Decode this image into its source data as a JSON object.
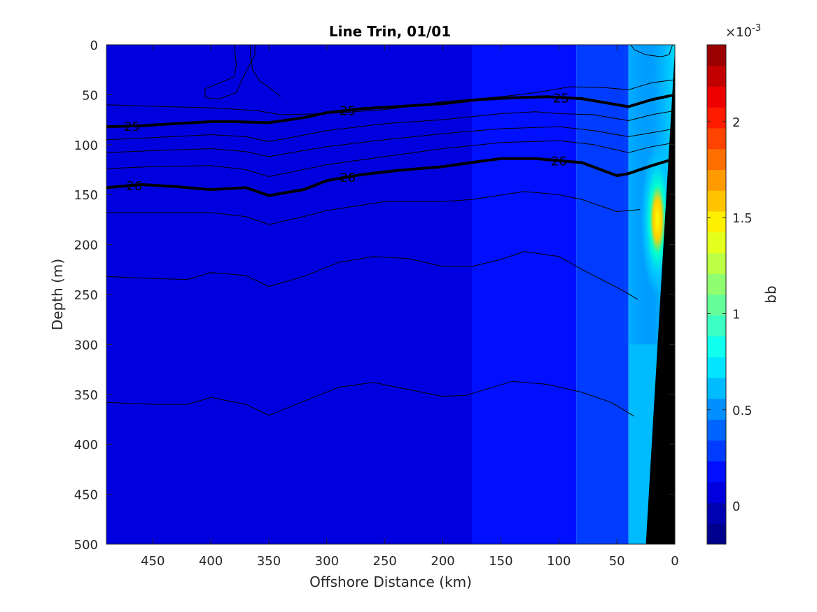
{
  "chart_data": {
    "type": "heatmap",
    "title": "Line Trin, 01/01",
    "xlabel": "Offshore Distance (km)",
    "ylabel": "Depth (m)",
    "colorbar_label": "bb",
    "colorbar_exponent_prefix": "×10",
    "colorbar_exponent": "-3",
    "xlim": [
      490,
      0
    ],
    "ylim": [
      0,
      500
    ],
    "x_ticks": [
      450,
      400,
      350,
      300,
      250,
      200,
      150,
      100,
      50,
      0
    ],
    "y_ticks": [
      0,
      50,
      100,
      150,
      200,
      250,
      300,
      350,
      400,
      450,
      500
    ],
    "colorbar_range": [
      -0.2,
      2.4
    ],
    "colorbar_ticks": [
      0,
      0.5,
      1,
      1.5,
      2
    ],
    "colorbar_colors": [
      "#00008f",
      "#0000b3",
      "#0000df",
      "#0010ff",
      "#003cff",
      "#0064ff",
      "#0090ff",
      "#00bcff",
      "#00e4ff",
      "#10ffef",
      "#3cffc3",
      "#64ff9b",
      "#90ff6f",
      "#bcff43",
      "#e4ff1b",
      "#ffef00",
      "#ffc300",
      "#ff9b00",
      "#ff6f00",
      "#ff4300",
      "#ff1b00",
      "#ef0000",
      "#c30000",
      "#9b0000"
    ],
    "background_regions": [
      {
        "x_from": 490,
        "x_to": 175,
        "value": 0.1
      },
      {
        "x_from": 175,
        "x_to": 85,
        "value": 0.2
      },
      {
        "x_from": 85,
        "x_to": 40,
        "value": 0.3
      },
      {
        "x_from": 40,
        "x_to": 0,
        "value": 0.6
      }
    ],
    "nearshore_max": {
      "x": 15,
      "depth": 175,
      "value": 1.6
    },
    "shelf_bottom": [
      [
        25,
        500
      ],
      [
        0,
        5
      ]
    ],
    "isopycnals": [
      {
        "level": "25",
        "bold": true,
        "label_x": [
          468,
          282,
          98
        ],
        "points": [
          [
            490,
            82
          ],
          [
            460,
            81
          ],
          [
            430,
            79
          ],
          [
            400,
            77
          ],
          [
            380,
            77
          ],
          [
            350,
            78
          ],
          [
            320,
            73
          ],
          [
            300,
            68
          ],
          [
            270,
            64
          ],
          [
            240,
            62
          ],
          [
            200,
            59
          ],
          [
            170,
            55
          ],
          [
            140,
            53
          ],
          [
            110,
            52
          ],
          [
            80,
            54
          ],
          [
            50,
            60
          ],
          [
            40,
            62
          ],
          [
            20,
            55
          ],
          [
            0,
            50
          ]
        ]
      },
      {
        "level": "26",
        "bold": true,
        "label_x": [
          466,
          282,
          100
        ],
        "points": [
          [
            490,
            143
          ],
          [
            460,
            140
          ],
          [
            430,
            142
          ],
          [
            400,
            145
          ],
          [
            370,
            143
          ],
          [
            350,
            151
          ],
          [
            320,
            145
          ],
          [
            300,
            136
          ],
          [
            270,
            130
          ],
          [
            240,
            126
          ],
          [
            200,
            122
          ],
          [
            170,
            117
          ],
          [
            150,
            114
          ],
          [
            120,
            114
          ],
          [
            100,
            116
          ],
          [
            80,
            118
          ],
          [
            50,
            131
          ],
          [
            40,
            129
          ],
          [
            20,
            121
          ],
          [
            0,
            114
          ]
        ]
      },
      {
        "level": "",
        "bold": false,
        "label_x": [],
        "points": [
          [
            490,
            60
          ],
          [
            440,
            62
          ],
          [
            400,
            63
          ],
          [
            360,
            66
          ],
          [
            340,
            70
          ],
          [
            300,
            69
          ],
          [
            250,
            65
          ],
          [
            200,
            57
          ],
          [
            150,
            52
          ],
          [
            120,
            48
          ],
          [
            90,
            42
          ],
          [
            60,
            43
          ],
          [
            40,
            45
          ],
          [
            20,
            38
          ],
          [
            0,
            35
          ]
        ]
      },
      {
        "level": "",
        "bold": false,
        "label_x": [],
        "points": [
          [
            490,
            95
          ],
          [
            450,
            93
          ],
          [
            400,
            90
          ],
          [
            370,
            92
          ],
          [
            350,
            97
          ],
          [
            300,
            86
          ],
          [
            250,
            79
          ],
          [
            200,
            75
          ],
          [
            150,
            69
          ],
          [
            120,
            67
          ],
          [
            100,
            69
          ],
          [
            70,
            70
          ],
          [
            40,
            76
          ],
          [
            20,
            70
          ],
          [
            0,
            66
          ]
        ]
      },
      {
        "level": "",
        "bold": false,
        "label_x": [],
        "points": [
          [
            490,
            108
          ],
          [
            450,
            106
          ],
          [
            400,
            104
          ],
          [
            370,
            107
          ],
          [
            350,
            112
          ],
          [
            300,
            102
          ],
          [
            250,
            95
          ],
          [
            200,
            89
          ],
          [
            150,
            84
          ],
          [
            100,
            82
          ],
          [
            70,
            86
          ],
          [
            40,
            92
          ],
          [
            20,
            88
          ],
          [
            0,
            84
          ]
        ]
      },
      {
        "level": "",
        "bold": false,
        "label_x": [],
        "points": [
          [
            490,
            124
          ],
          [
            450,
            122
          ],
          [
            400,
            121
          ],
          [
            370,
            125
          ],
          [
            350,
            132
          ],
          [
            300,
            120
          ],
          [
            250,
            112
          ],
          [
            200,
            104
          ],
          [
            150,
            98
          ],
          [
            100,
            96
          ],
          [
            70,
            100
          ],
          [
            40,
            108
          ],
          [
            20,
            102
          ],
          [
            0,
            98
          ]
        ]
      },
      {
        "level": "",
        "bold": false,
        "label_x": [],
        "points": [
          [
            490,
            168
          ],
          [
            450,
            168
          ],
          [
            400,
            168
          ],
          [
            370,
            172
          ],
          [
            350,
            180
          ],
          [
            320,
            172
          ],
          [
            300,
            166
          ],
          [
            250,
            157
          ],
          [
            200,
            157
          ],
          [
            175,
            155
          ],
          [
            130,
            147
          ],
          [
            100,
            150
          ],
          [
            80,
            155
          ],
          [
            50,
            167
          ],
          [
            30,
            165
          ]
        ]
      },
      {
        "level": "",
        "bold": false,
        "label_x": [],
        "points": [
          [
            490,
            232
          ],
          [
            450,
            234
          ],
          [
            420,
            235
          ],
          [
            400,
            228
          ],
          [
            370,
            231
          ],
          [
            350,
            242
          ],
          [
            320,
            232
          ],
          [
            290,
            218
          ],
          [
            260,
            212
          ],
          [
            230,
            214
          ],
          [
            200,
            222
          ],
          [
            175,
            222
          ],
          [
            150,
            215
          ],
          [
            130,
            207
          ],
          [
            100,
            212
          ],
          [
            80,
            225
          ],
          [
            60,
            237
          ],
          [
            45,
            246
          ],
          [
            32,
            255
          ]
        ]
      },
      {
        "level": "",
        "bold": false,
        "label_x": [],
        "points": [
          [
            490,
            358
          ],
          [
            450,
            360
          ],
          [
            420,
            360
          ],
          [
            400,
            353
          ],
          [
            370,
            360
          ],
          [
            350,
            371
          ],
          [
            320,
            357
          ],
          [
            290,
            343
          ],
          [
            260,
            338
          ],
          [
            230,
            345
          ],
          [
            200,
            352
          ],
          [
            180,
            351
          ],
          [
            140,
            337
          ],
          [
            110,
            340
          ],
          [
            80,
            348
          ],
          [
            55,
            358
          ],
          [
            45,
            365
          ],
          [
            35,
            372
          ]
        ]
      },
      {
        "level": "",
        "bold": false,
        "label_x": [],
        "points": [
          [
            340,
            52
          ],
          [
            347,
            45
          ],
          [
            358,
            36
          ],
          [
            364,
            25
          ],
          [
            366,
            8
          ],
          [
            366,
            0
          ]
        ]
      },
      {
        "level": "",
        "bold": false,
        "label_x": [],
        "points": [
          [
            362,
            0
          ],
          [
            362,
            10
          ],
          [
            372,
            32
          ],
          [
            378,
            48
          ],
          [
            388,
            52
          ],
          [
            392,
            54
          ],
          [
            400,
            54
          ],
          [
            405,
            52
          ],
          [
            405,
            44
          ],
          [
            392,
            38
          ],
          [
            380,
            32
          ],
          [
            378,
            20
          ],
          [
            380,
            0
          ]
        ]
      },
      {
        "level": "",
        "bold": false,
        "label_x": [],
        "points": [
          [
            38,
            0
          ],
          [
            35,
            5
          ],
          [
            25,
            10
          ],
          [
            12,
            12
          ],
          [
            5,
            10
          ],
          [
            2,
            0
          ]
        ]
      }
    ]
  }
}
